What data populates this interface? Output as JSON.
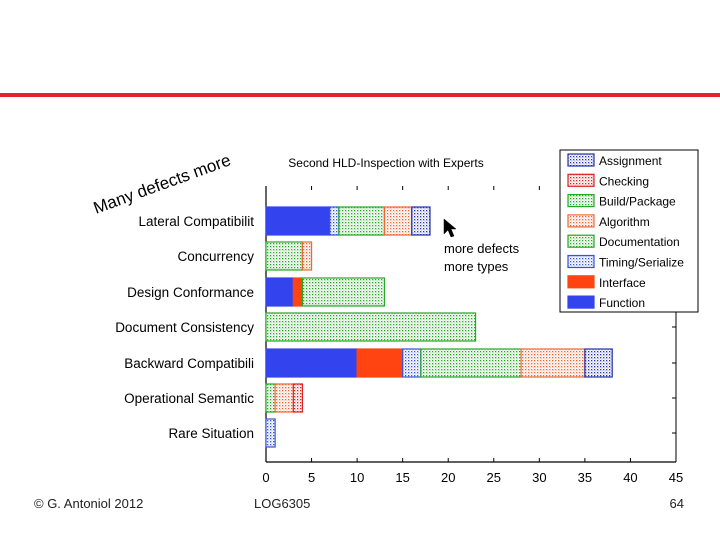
{
  "slide": {
    "footer_left": "© G. Antoniol 2012",
    "footer_center": "LOG6305",
    "footer_right": "64",
    "accent_color": "#e0262c"
  },
  "annotations": {
    "many_defects_more": "Many defects more",
    "more_defects_line1": "more defects",
    "more_defects_line2": "more types"
  },
  "chart_data": {
    "type": "bar",
    "orientation": "horizontal",
    "stacked": true,
    "title": "Second HLD-Inspection with Experts",
    "xlabel": "",
    "ylabel": "",
    "xlim": [
      0,
      45
    ],
    "xticks": [
      0,
      5,
      10,
      15,
      20,
      25,
      30,
      35,
      40,
      45
    ],
    "categories": [
      "Lateral Compatibilit",
      "Concurrency",
      "Design Conformance",
      "Document Consistency",
      "Backward Compatibili",
      "Operational Semantic",
      "Rare Situation"
    ],
    "series": [
      {
        "name": "Function",
        "color": "#3344ee",
        "pattern": "solid",
        "values": [
          7,
          0,
          3,
          0,
          10,
          0,
          0
        ]
      },
      {
        "name": "Interface",
        "color": "#ff4411",
        "pattern": "solid",
        "values": [
          0,
          0,
          1,
          0,
          5,
          0,
          0
        ]
      },
      {
        "name": "Timing/Serialize",
        "color": "#3355dd",
        "pattern": "dots",
        "values": [
          1,
          0,
          0,
          0,
          2,
          0,
          1
        ]
      },
      {
        "name": "Documentation",
        "color": "#22aa22",
        "pattern": "dots",
        "values": [
          5,
          4,
          9,
          23,
          11,
          1,
          0
        ]
      },
      {
        "name": "Algorithm",
        "color": "#ee6633",
        "pattern": "dots",
        "values": [
          3,
          1,
          0,
          0,
          7,
          2,
          0
        ]
      },
      {
        "name": "Build/Package",
        "color": "#22aa22",
        "pattern": "dots",
        "values": [
          0,
          0,
          0,
          0,
          0,
          0,
          0
        ]
      },
      {
        "name": "Checking",
        "color": "#dd2222",
        "pattern": "dots",
        "values": [
          0,
          0,
          0,
          0,
          0,
          1,
          0
        ]
      },
      {
        "name": "Assignment",
        "color": "#2233aa",
        "pattern": "dots",
        "values": [
          2,
          0,
          0,
          0,
          3,
          0,
          0
        ]
      }
    ],
    "legend": {
      "placement": "top-right",
      "order": [
        "Assignment",
        "Checking",
        "Build/Package",
        "Algorithm",
        "Documentation",
        "Timing/Serialize",
        "Interface",
        "Function"
      ]
    },
    "grid": false
  }
}
